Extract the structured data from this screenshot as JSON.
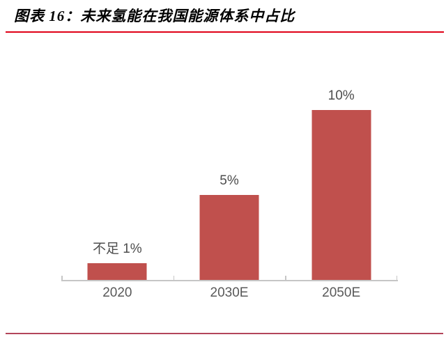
{
  "header": {
    "title": "图表 16：未来氢能在我国能源体系中占比",
    "rule_color": "#E00016"
  },
  "chart_data": {
    "type": "bar",
    "title": "未来氢能在我国能源体系中占比",
    "categories": [
      "2020",
      "2030E",
      "2050E"
    ],
    "values": [
      1,
      5,
      10
    ],
    "value_labels": [
      "不足 1%",
      "5%",
      "10%"
    ],
    "unit": "%",
    "ylim": [
      0,
      10
    ],
    "grid": false,
    "legend": false,
    "y_axis_visible": false,
    "bar_color": "#C0504D",
    "axis_color": "#C6C6C6",
    "data_label_color": "#4D4D4D",
    "tick_label_color": "#595959"
  },
  "footer": {
    "rule_color": "#B3465A"
  }
}
